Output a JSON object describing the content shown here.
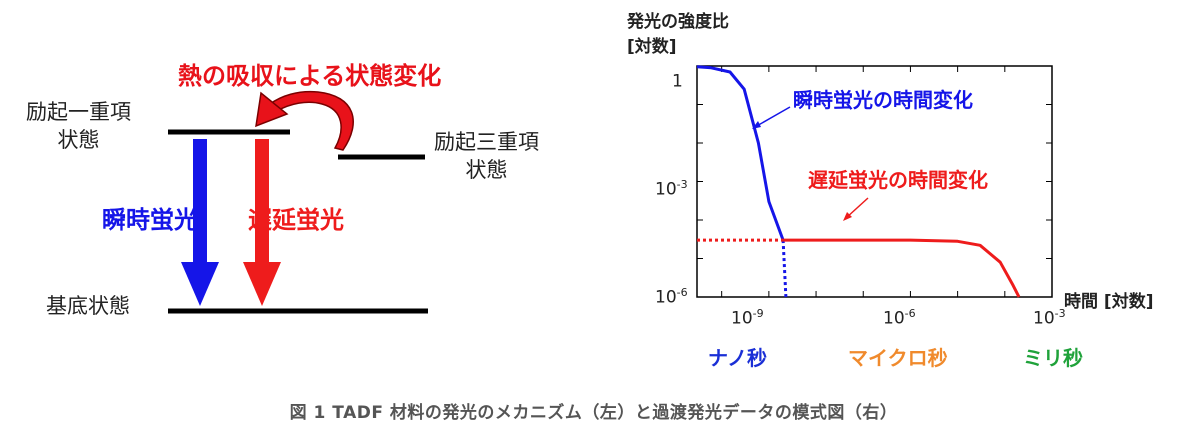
{
  "energy_diagram": {
    "heat_title": "熱の吸収による状態変化",
    "s1_label_line1": "励起一重項",
    "s1_label_line2": "状態",
    "t1_label_line1": "励起三重項",
    "t1_label_line2": "状態",
    "s0_label": "基底状態",
    "prompt_label": "瞬時蛍光",
    "delayed_label": "遅延蛍光"
  },
  "plot": {
    "ylabel_line1": "発光の強度比",
    "ylabel_line2": "[対数]",
    "xlabel": "時間 [対数]",
    "y_ticks": [
      {
        "base": "1",
        "exp": ""
      },
      {
        "base": "10",
        "exp": "-3"
      },
      {
        "base": "10",
        "exp": "-6"
      }
    ],
    "x_ticks": [
      {
        "base": "10",
        "exp": "-9"
      },
      {
        "base": "10",
        "exp": "-6"
      },
      {
        "base": "10",
        "exp": "-3"
      }
    ],
    "prompt_annotation": "瞬時蛍光の時間変化",
    "delayed_annotation": "遅延蛍光の時間変化",
    "timescale_ns": "ナノ秒",
    "timescale_us": "マイクロ秒",
    "timescale_ms": "ミリ秒"
  },
  "colors": {
    "prompt": "#1515e8",
    "delayed": "#ee1c1c",
    "heat": "#e8121a",
    "ns": "#1a2fd6",
    "us": "#f08a2c",
    "ms": "#1fa23a",
    "caption": "#555555"
  },
  "caption": "図 1 TADF 材料の発光のメカニズム（左）と過渡発光データの模式図（右）",
  "chart_data": {
    "type": "line",
    "x_scale": "log",
    "y_scale": "log",
    "xlim": [
      3e-11,
      0.001
    ],
    "ylim": [
      1e-06,
      1
    ],
    "x_ticks": [
      1e-09,
      1e-06,
      0.001
    ],
    "y_ticks": [
      1,
      0.001,
      1e-06
    ],
    "series": [
      {
        "name": "瞬時蛍光",
        "color": "#1515e8",
        "points": [
          {
            "x": 3e-11,
            "y": 0.96
          },
          {
            "x": 6e-11,
            "y": 0.9
          },
          {
            "x": 1.5e-10,
            "y": 0.7
          },
          {
            "x": 3e-10,
            "y": 0.25
          },
          {
            "x": 6e-10,
            "y": 0.01
          },
          {
            "x": 1e-09,
            "y": 0.0003
          },
          {
            "x": 2e-09,
            "y": 3e-05
          }
        ],
        "dotted_after_x": 2e-09,
        "dotted_points": [
          {
            "x": 2e-09,
            "y": 3e-05
          },
          {
            "x": 2.3e-09,
            "y": 1e-06
          }
        ]
      },
      {
        "name": "遅延蛍光",
        "color": "#ee1c1c",
        "points": [
          {
            "x": 2e-09,
            "y": 3e-05
          },
          {
            "x": 1e-06,
            "y": 3e-05
          },
          {
            "x": 1e-05,
            "y": 2.8e-05
          },
          {
            "x": 3e-05,
            "y": 2.2e-05
          },
          {
            "x": 8e-05,
            "y": 8e-06
          },
          {
            "x": 0.00015,
            "y": 2e-06
          },
          {
            "x": 0.0002,
            "y": 1e-06
          }
        ],
        "dotted_points": [
          {
            "x": 3e-11,
            "y": 3e-05
          },
          {
            "x": 2e-09,
            "y": 3e-05
          }
        ]
      }
    ]
  }
}
